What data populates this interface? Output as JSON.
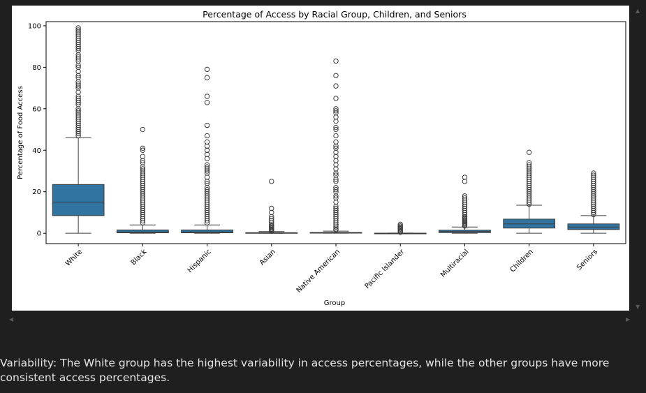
{
  "caption": "Variability: The White group has the highest variability in access percentages, while the other groups have more consistent access percentages.",
  "scroll_icons": {
    "up": "▲",
    "down": "▼",
    "left": "◀",
    "right": "▶"
  },
  "chart_data": {
    "type": "box",
    "title": "Percentage of Access by Racial Group, Children, and Seniors",
    "xlabel": "Group",
    "ylabel": "Percentage of Food Access",
    "ylim": [
      -5,
      102
    ],
    "yticks": [
      0,
      20,
      40,
      60,
      80,
      100
    ],
    "grid": false,
    "box_color": "#3274a1",
    "categories": [
      "White",
      "Black",
      "Hispanic",
      "Asian",
      "Native American",
      "Pacific Islander",
      "Multiracial",
      "Children",
      "Seniors"
    ],
    "boxes": [
      {
        "category": "White",
        "min": 0,
        "q1": 8.5,
        "median": 15,
        "q3": 23.5,
        "max": 46,
        "outliers": [
          47,
          48,
          49,
          50,
          51,
          52,
          53,
          54,
          55,
          56,
          57,
          58,
          59,
          60,
          62,
          63,
          64,
          65,
          66,
          68,
          70,
          71,
          72,
          73,
          75,
          76,
          78,
          80,
          81,
          83,
          84,
          85,
          86,
          88,
          89,
          90,
          91,
          92,
          93,
          94,
          95,
          96,
          97,
          98,
          99
        ]
      },
      {
        "category": "Black",
        "min": 0,
        "q1": 0.2,
        "median": 0.6,
        "q3": 1.6,
        "max": 4,
        "outliers": [
          5,
          6,
          7,
          8,
          9,
          10,
          11,
          12,
          13,
          14,
          15,
          16,
          17,
          18,
          19,
          20,
          21,
          22,
          23,
          24,
          25,
          26,
          27,
          28,
          29,
          30,
          31,
          32,
          34,
          35,
          37,
          40,
          41,
          50
        ]
      },
      {
        "category": "Hispanic",
        "min": 0,
        "q1": 0.2,
        "median": 0.6,
        "q3": 1.6,
        "max": 4,
        "outliers": [
          5,
          6,
          7,
          8,
          9,
          10,
          11,
          12,
          13,
          14,
          15,
          16,
          17,
          18,
          19,
          20,
          21,
          22,
          24,
          25,
          27,
          29,
          30,
          31,
          32,
          33,
          36,
          38,
          40,
          42,
          44,
          47,
          52,
          63,
          66,
          75,
          79
        ]
      },
      {
        "category": "Asian",
        "min": 0,
        "q1": 0,
        "median": 0.05,
        "q3": 0.3,
        "max": 0.8,
        "outliers": [
          1,
          1.5,
          2,
          2.5,
          3,
          3.5,
          4,
          5,
          6,
          7,
          8,
          10,
          12,
          25
        ]
      },
      {
        "category": "Native American",
        "min": 0,
        "q1": 0.05,
        "median": 0.15,
        "q3": 0.4,
        "max": 1,
        "outliers": [
          1.5,
          2,
          3,
          4,
          5,
          6,
          7,
          8,
          9,
          10,
          11,
          12,
          13,
          15,
          17,
          18,
          20,
          21,
          22,
          25,
          26,
          28,
          29,
          31,
          33,
          35,
          37,
          39,
          41,
          42,
          44,
          47,
          50,
          51,
          54,
          56,
          58,
          59,
          60,
          65,
          71,
          76,
          83
        ]
      },
      {
        "category": "Pacific Islander",
        "min": 0,
        "q1": 0,
        "median": 0,
        "q3": 0.05,
        "max": 0.1,
        "outliers": [
          0.5,
          1,
          1.5,
          2,
          2.5,
          3,
          3.5,
          4.3
        ]
      },
      {
        "category": "Multiracial",
        "min": 0,
        "q1": 0.3,
        "median": 0.8,
        "q3": 1.5,
        "max": 3,
        "outliers": [
          3.5,
          4,
          4.5,
          5,
          5.5,
          6,
          6.5,
          7,
          7.5,
          8,
          9,
          10,
          11,
          12,
          13,
          14,
          15,
          16,
          17,
          18,
          25,
          27
        ]
      },
      {
        "category": "Children",
        "min": 0,
        "q1": 2.5,
        "median": 4.5,
        "q3": 6.8,
        "max": 13.5,
        "outliers": [
          14,
          15,
          16,
          17,
          18,
          19,
          20,
          21,
          22,
          23,
          24,
          25,
          26,
          27,
          28,
          29,
          30,
          31,
          32,
          33,
          34,
          39
        ]
      },
      {
        "category": "Seniors",
        "min": 0,
        "q1": 1.8,
        "median": 3,
        "q3": 4.5,
        "max": 8.5,
        "outliers": [
          9,
          10,
          11,
          12,
          13,
          14,
          15,
          16,
          17,
          18,
          19,
          20,
          21,
          22,
          23,
          24,
          25,
          26,
          27,
          28,
          29
        ]
      }
    ]
  }
}
